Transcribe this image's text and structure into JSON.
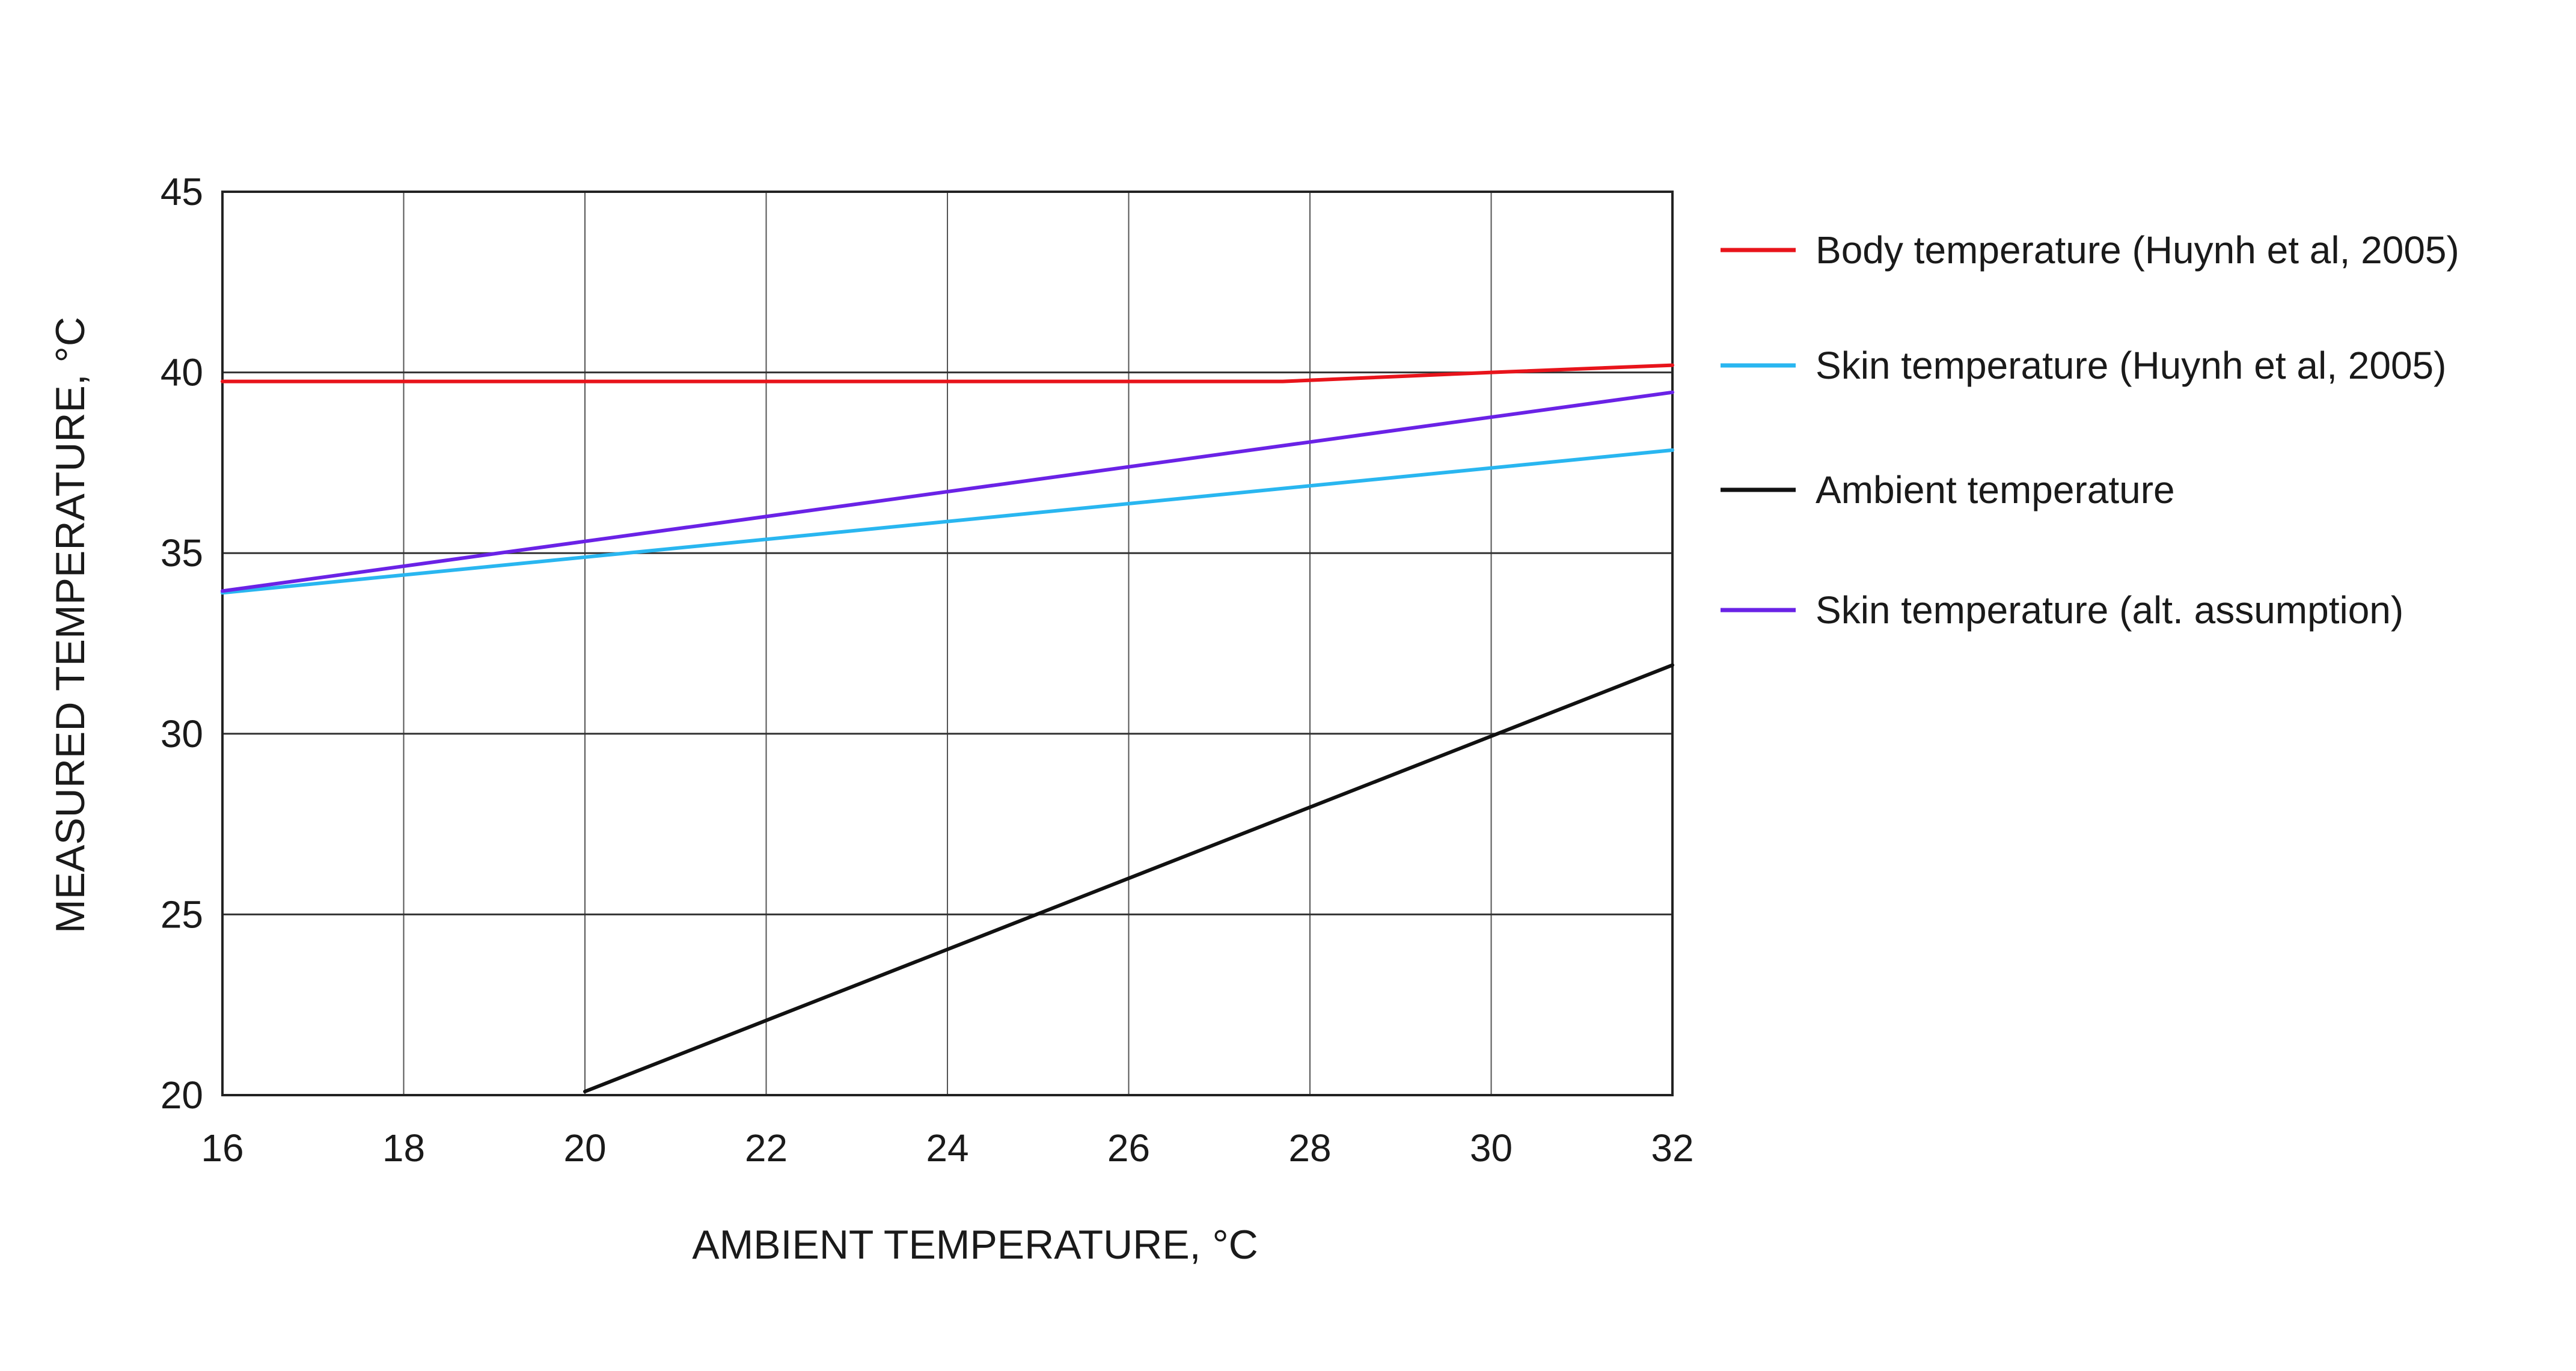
{
  "chart_data": {
    "type": "line",
    "xlabel": "AMBIENT TEMPERATURE, °C",
    "ylabel": "MEASURED TEMPERATURE, °C",
    "xlim": [
      16,
      32
    ],
    "ylim": [
      20,
      45
    ],
    "xticks": [
      16,
      18,
      20,
      22,
      24,
      26,
      28,
      30,
      32
    ],
    "yticks": [
      20,
      25,
      30,
      35,
      40,
      45
    ],
    "grid": true,
    "legend_position": "right",
    "series": [
      {
        "name": "Body temperature (Huynh et al, 2005)",
        "color": "#e8141b",
        "x": [
          16,
          27.7,
          30,
          32
        ],
        "y": [
          39.75,
          39.75,
          40.0,
          40.2
        ]
      },
      {
        "name": "Skin temperature (Huynh et al, 2005)",
        "color": "#29b6f0",
        "x": [
          16,
          32
        ],
        "y": [
          33.9,
          37.85
        ]
      },
      {
        "name": "Ambient temperature",
        "color": "#111111",
        "x": [
          20,
          32
        ],
        "y": [
          20.1,
          31.9
        ]
      },
      {
        "name": "Skin temperature (alt. assumption)",
        "color": "#6a22e6",
        "x": [
          16,
          32
        ],
        "y": [
          33.95,
          39.45
        ]
      }
    ]
  }
}
